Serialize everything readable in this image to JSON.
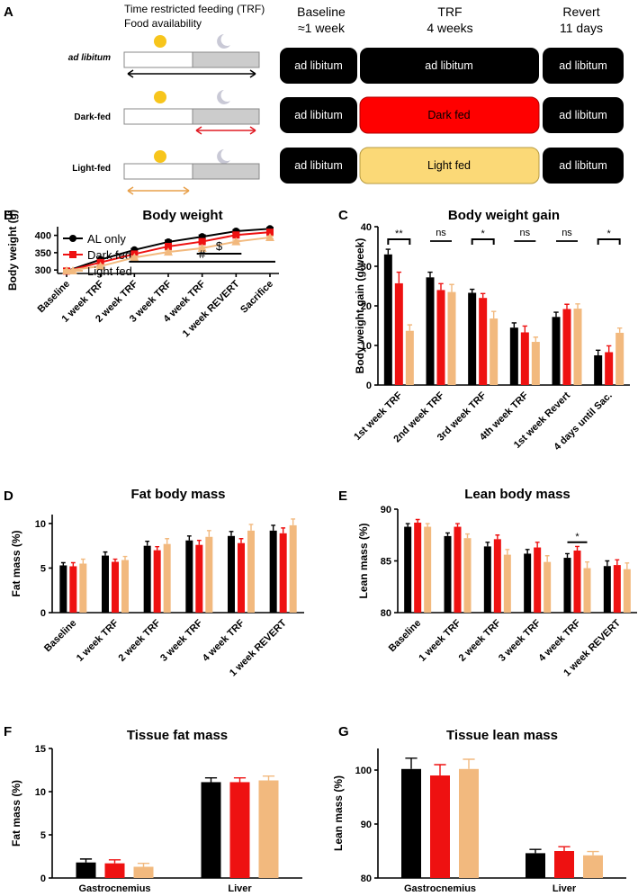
{
  "colors": {
    "al": "#000000",
    "dark": "#ee1111",
    "light": "#f2b97e",
    "pill_black": "#000000",
    "pill_red": "#ff0000",
    "pill_yellow": "#fbd977",
    "night": "#cccccc"
  },
  "panel_a": {
    "label": "A",
    "header_left_1": "Time restricted feeding (TRF)",
    "header_left_2": "Food availability",
    "phases": [
      {
        "name": "Baseline",
        "duration": "≈1 week"
      },
      {
        "name": "TRF",
        "duration": "4 weeks"
      },
      {
        "name": "Revert",
        "duration": "11 days"
      }
    ],
    "rows": [
      {
        "label": "ad libitum",
        "baseline": "ad libitum",
        "trf": "ad libitum",
        "revert": "ad libitum"
      },
      {
        "label": "Dark-fed",
        "baseline": "ad libitum",
        "trf": "Dark fed",
        "revert": "ad libitum"
      },
      {
        "label": "Light-fed",
        "baseline": "ad libitum",
        "trf": "Light fed",
        "revert": "ad libitum"
      }
    ]
  },
  "chart_data": [
    {
      "panel": "B",
      "type": "line",
      "title": "Body weight",
      "ylabel": "Body weight (g)",
      "ylim": [
        290,
        425
      ],
      "yticks": [
        300,
        350,
        400
      ],
      "categories": [
        "Baseline",
        "1 week TRF",
        "2 week TRF",
        "3 week TRF",
        "4 week TRF",
        "1 week REVERT",
        "Sacrifice"
      ],
      "series": [
        {
          "name": "AL only",
          "values": [
            297,
            330,
            358,
            381,
            396,
            412,
            419
          ],
          "errors": [
            3,
            4,
            4,
            5,
            5,
            4,
            4
          ]
        },
        {
          "name": "Dark fed",
          "values": [
            297,
            322,
            346,
            368,
            382,
            401,
            409
          ],
          "errors": [
            3,
            3,
            3,
            4,
            4,
            4,
            4
          ]
        },
        {
          "name": "Light fed",
          "values": [
            298,
            311,
            336,
            352,
            363,
            382,
            394
          ],
          "errors": [
            3,
            4,
            4,
            4,
            4,
            4,
            4
          ]
        }
      ],
      "annotations": [
        {
          "text": "$",
          "from": "4 week TRF",
          "to": "1 week REVERT",
          "y": 347
        },
        {
          "text": "#",
          "from": "2 week TRF",
          "to": "Sacrifice",
          "y": 324
        }
      ]
    },
    {
      "panel": "C",
      "type": "bar",
      "title": "Body weight gain",
      "ylabel": "Body weight gain (g/week)",
      "ylim": [
        0,
        40
      ],
      "yticks": [
        0,
        10,
        20,
        30,
        40
      ],
      "categories": [
        "1st week TRF",
        "2nd week TRF",
        "3rd week TRF",
        "4th week TRF",
        "1st week Revert",
        "4 days until Sac."
      ],
      "series": [
        {
          "name": "AL only",
          "values": [
            33,
            27.2,
            23.3,
            14.5,
            17.2,
            7.5
          ],
          "errors": [
            1.3,
            1.3,
            0.9,
            1.2,
            1.2,
            1.3
          ]
        },
        {
          "name": "Dark fed",
          "values": [
            25.7,
            24,
            22,
            13.3,
            19.2,
            8.3
          ],
          "errors": [
            2.8,
            1.6,
            1.1,
            1.6,
            1.2,
            1.6
          ]
        },
        {
          "name": "Light fed",
          "values": [
            13.7,
            23.5,
            16.8,
            10.9,
            19.3,
            13.2
          ],
          "errors": [
            1.5,
            1.9,
            1.8,
            1.2,
            1.2,
            1.2
          ]
        }
      ],
      "significance": [
        "**",
        "ns",
        "*",
        "ns",
        "ns",
        "*"
      ]
    },
    {
      "panel": "D",
      "type": "bar",
      "title": "Fat body mass",
      "ylabel": "Fat mass (%)",
      "ylim": [
        0,
        11
      ],
      "yticks": [
        0,
        5,
        10
      ],
      "categories": [
        "Baseline",
        "1 week TRF",
        "2 week TRF",
        "3 week TRF",
        "4 week TRF",
        "1 week REVERT"
      ],
      "series": [
        {
          "name": "AL only",
          "values": [
            5.3,
            6.4,
            7.5,
            8.1,
            8.6,
            9.2
          ],
          "errors": [
            0.3,
            0.4,
            0.5,
            0.5,
            0.5,
            0.6
          ]
        },
        {
          "name": "Dark fed",
          "values": [
            5.2,
            5.7,
            7,
            7.6,
            7.8,
            8.9
          ],
          "errors": [
            0.4,
            0.3,
            0.4,
            0.5,
            0.5,
            0.6
          ]
        },
        {
          "name": "Light fed",
          "values": [
            5.5,
            5.9,
            7.7,
            8.5,
            9.2,
            9.8
          ],
          "errors": [
            0.5,
            0.4,
            0.6,
            0.7,
            0.7,
            0.7
          ]
        }
      ]
    },
    {
      "panel": "E",
      "type": "bar",
      "title": "Lean body mass",
      "ylabel": "Lean mass (%)",
      "ylim": [
        80,
        90
      ],
      "yticks": [
        80,
        85,
        90
      ],
      "categories": [
        "Baseline",
        "1 week TRF",
        "2 week TRF",
        "3 week TRF",
        "4 week TRF",
        "1 week REVERT"
      ],
      "series": [
        {
          "name": "AL only",
          "values": [
            88.3,
            87.4,
            86.4,
            85.7,
            85.3,
            84.5
          ],
          "errors": [
            0.3,
            0.3,
            0.4,
            0.4,
            0.4,
            0.5
          ]
        },
        {
          "name": "Dark fed",
          "values": [
            88.7,
            88.3,
            87.1,
            86.3,
            86,
            84.6
          ],
          "errors": [
            0.3,
            0.3,
            0.4,
            0.5,
            0.4,
            0.5
          ]
        },
        {
          "name": "Light fed",
          "values": [
            88.3,
            87.2,
            85.6,
            84.9,
            84.3,
            84.2
          ],
          "errors": [
            0.3,
            0.4,
            0.5,
            0.6,
            0.6,
            0.6
          ]
        }
      ],
      "significance_label": "*"
    },
    {
      "panel": "F",
      "type": "bar",
      "title": "Tissue fat mass",
      "ylabel": "Fat mass (%)",
      "ylim": [
        0,
        15
      ],
      "yticks": [
        0,
        5,
        10,
        15
      ],
      "categories": [
        "Gastrocnemius",
        "Liver"
      ],
      "series": [
        {
          "name": "AL only",
          "values": [
            1.8,
            11.1
          ],
          "errors": [
            0.4,
            0.5
          ]
        },
        {
          "name": "Dark fed",
          "values": [
            1.7,
            11.1
          ],
          "errors": [
            0.4,
            0.5
          ]
        },
        {
          "name": "Light fed",
          "values": [
            1.3,
            11.3
          ],
          "errors": [
            0.4,
            0.5
          ]
        }
      ]
    },
    {
      "panel": "G",
      "type": "bar",
      "title": "Tissue lean mass",
      "ylabel": "Lean mass (%)",
      "ylim": [
        80,
        104
      ],
      "yticks": [
        80,
        90,
        100
      ],
      "categories": [
        "Gastrocnemius",
        "Liver"
      ],
      "series": [
        {
          "name": "AL only",
          "values": [
            100.2,
            84.6
          ],
          "errors": [
            2,
            0.7
          ]
        },
        {
          "name": "Dark fed",
          "values": [
            99,
            85
          ],
          "errors": [
            2,
            0.8
          ]
        },
        {
          "name": "Light fed",
          "values": [
            100.2,
            84.2
          ],
          "errors": [
            1.8,
            0.7
          ]
        }
      ]
    }
  ]
}
